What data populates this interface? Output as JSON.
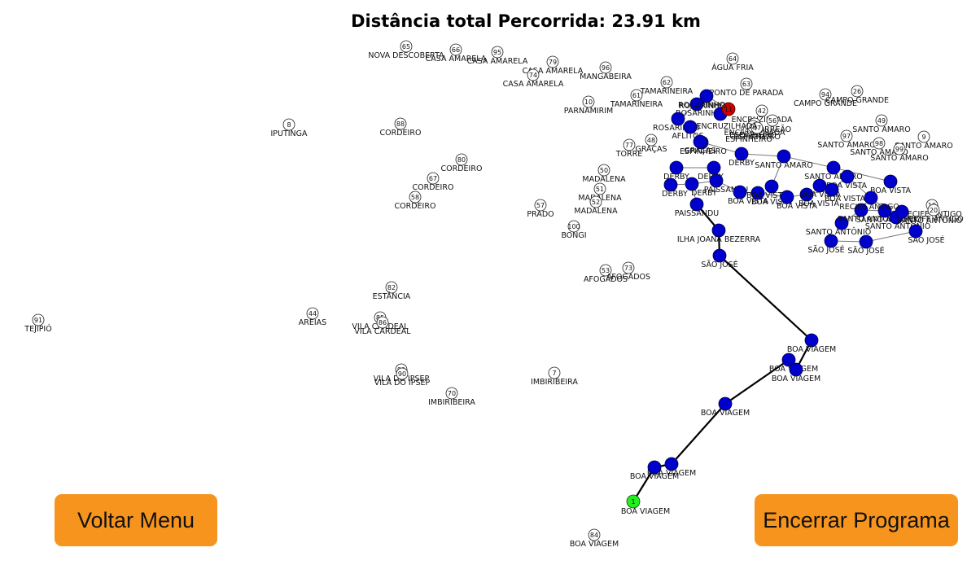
{
  "header": {
    "title": "Distância total Percorrida: 23.91 km"
  },
  "buttons": {
    "back_label": "Voltar Menu",
    "end_label": "Encerrar Programa"
  },
  "colors": {
    "visited": "#0000cc",
    "start": "#22ee22",
    "end": "#cc0000",
    "button": "#f7941d",
    "edge": "#000000"
  },
  "unvisited_nodes": [
    {
      "id": "65",
      "name": "NOVA DESCOBERTA"
    },
    {
      "id": "66",
      "name": "CASA AMARELA"
    },
    {
      "id": "95",
      "name": "CASA AMARELA"
    },
    {
      "id": "79",
      "name": "CASA AMARELA"
    },
    {
      "id": "74",
      "name": "CASA AMARELA"
    },
    {
      "id": "96",
      "name": "MANGABEIRA"
    },
    {
      "id": "64",
      "name": "ÁGUA FRIA"
    },
    {
      "id": "62",
      "name": "TAMARINEIRA"
    },
    {
      "id": "61",
      "name": "TAMARINEIRA"
    },
    {
      "id": "10",
      "name": "PARNAMIRIM"
    },
    {
      "id": "63",
      "name": "PONTO DE PARADA"
    },
    {
      "id": "8",
      "name": "IPUTINGA"
    },
    {
      "id": "88",
      "name": "CORDEIRO"
    },
    {
      "id": "80",
      "name": "CORDEIRO"
    },
    {
      "id": "67",
      "name": "CORDEIRO"
    },
    {
      "id": "58",
      "name": "CORDEIRO"
    },
    {
      "id": "77",
      "name": "TORRE"
    },
    {
      "id": "48",
      "name": "GRAÇAS"
    },
    {
      "id": "50",
      "name": "MADALENA"
    },
    {
      "id": "51",
      "name": "MADALENA"
    },
    {
      "id": "52",
      "name": "MADALENA"
    },
    {
      "id": "57",
      "name": "PRADO"
    },
    {
      "id": "100",
      "name": "BONGI"
    },
    {
      "id": "53",
      "name": "AFOGADOS"
    },
    {
      "id": "73",
      "name": "AFOGADOS"
    },
    {
      "id": "82",
      "name": "ESTÂNCIA"
    },
    {
      "id": "91",
      "name": "TEJIPIÓ"
    },
    {
      "id": "44",
      "name": "AREIAS"
    },
    {
      "id": "85",
      "name": "VILA CARDEAL"
    },
    {
      "id": "86",
      "name": "VILA CARDEAL"
    },
    {
      "id": "89",
      "name": "VILA DO IPSEP"
    },
    {
      "id": "90",
      "name": "VILA DO IPSEP"
    },
    {
      "id": "70",
      "name": "IMBIRIBEIRA"
    },
    {
      "id": "7",
      "name": "IMBIRIBEIRA"
    },
    {
      "id": "84",
      "name": "BOA VIAGEM"
    },
    {
      "id": "94",
      "name": "CAMPO GRANDE"
    },
    {
      "id": "26",
      "name": "CAMPO GRANDE"
    },
    {
      "id": "49",
      "name": "SANTO AMARO"
    },
    {
      "id": "97",
      "name": "SANTO AMARO"
    },
    {
      "id": "98",
      "name": "SANTO AMARO"
    },
    {
      "id": "9",
      "name": "SANTO AMARO"
    },
    {
      "id": "99",
      "name": "SANTO AMARO"
    },
    {
      "id": "42",
      "name": "ENCRUZILHADA"
    },
    {
      "id": "40",
      "name": "ENCRUZILHADA"
    },
    {
      "id": "56",
      "name": "TORREÃO"
    },
    {
      "id": "45",
      "name": "ESPINHEIRO"
    },
    {
      "id": "46",
      "name": "ESPINHEIRO"
    },
    {
      "id": "47",
      "name": "ESPINHEIRO"
    },
    {
      "id": "19",
      "name": "RECIFE ANTIGO"
    },
    {
      "id": "20",
      "name": "RECIFE ANTIGO"
    }
  ],
  "visited_nodes": [
    {
      "name": "ROSARINHO"
    },
    {
      "name": "ROSARINHO"
    },
    {
      "name": "ROSARINHO"
    },
    {
      "name": "ENCRUZILHADA"
    },
    {
      "name": "AFLITOS"
    },
    {
      "name": "ESPINHEIRO"
    },
    {
      "name": "GRAÇAS"
    },
    {
      "name": "DERBY"
    },
    {
      "name": "SANTO AMARO"
    },
    {
      "name": "DERBY"
    },
    {
      "name": "DERBY"
    },
    {
      "name": "SANTO AMARO"
    },
    {
      "name": "BOA VISTA"
    },
    {
      "name": "BOA VISTA"
    },
    {
      "name": "DERBY"
    },
    {
      "name": "DERBY"
    },
    {
      "name": "PAISSANDU"
    },
    {
      "name": "BOA VISTA"
    },
    {
      "name": "BOA VISTA"
    },
    {
      "name": "BOA VISTA"
    },
    {
      "name": "BOA VISTA"
    },
    {
      "name": "BOA VISTA"
    },
    {
      "name": "BOA VISTA"
    },
    {
      "name": "BOA VISTA"
    },
    {
      "name": "SANTO ANTÔNIO"
    },
    {
      "name": "SANTO ANTÔNIO"
    },
    {
      "name": "SANTO ANTÔNIO"
    },
    {
      "name": "SANTO ANTÔNIO"
    },
    {
      "name": "SANTO ANTÔNIO"
    },
    {
      "name": "RECIFE ANTIGO"
    },
    {
      "name": "SÃO JOSÉ"
    },
    {
      "name": "SÃO JOSÉ"
    },
    {
      "name": "SÃO JOSÉ"
    },
    {
      "name": "PAISSANDU"
    },
    {
      "name": "ILHA JOANA BEZERRA"
    },
    {
      "name": "SÃO JOSÉ"
    },
    {
      "name": "BOA VIAGEM"
    },
    {
      "name": "BOA VIAGEM"
    },
    {
      "name": "BOA VIAGEM"
    },
    {
      "name": "BOA VIAGEM"
    },
    {
      "name": "BOA VIAGEM"
    },
    {
      "name": "BOA VIAGEM"
    }
  ],
  "start_node": {
    "id": "1",
    "name": "BOA VIAGEM"
  },
  "end_node": {
    "id": "11",
    "name": "ROSARINHO"
  }
}
